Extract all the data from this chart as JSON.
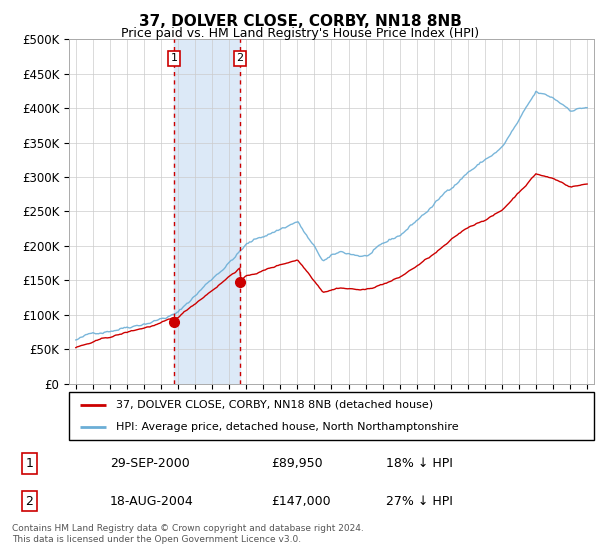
{
  "title": "37, DOLVER CLOSE, CORBY, NN18 8NB",
  "subtitle": "Price paid vs. HM Land Registry's House Price Index (HPI)",
  "legend_line1": "37, DOLVER CLOSE, CORBY, NN18 8NB (detached house)",
  "legend_line2": "HPI: Average price, detached house, North Northamptonshire",
  "table_row1_num": "1",
  "table_row1_date": "29-SEP-2000",
  "table_row1_price": "£89,950",
  "table_row1_hpi": "18% ↓ HPI",
  "table_row2_num": "2",
  "table_row2_date": "18-AUG-2004",
  "table_row2_price": "£147,000",
  "table_row2_hpi": "27% ↓ HPI",
  "footnote": "Contains HM Land Registry data © Crown copyright and database right 2024.\nThis data is licensed under the Open Government Licence v3.0.",
  "hpi_color": "#6baed6",
  "price_color": "#cc0000",
  "highlight_color": "#dce9f7",
  "vline_color": "#cc0000",
  "box_color": "#cc0000",
  "ylim": [
    0,
    500000
  ],
  "yticks": [
    0,
    50000,
    100000,
    150000,
    200000,
    250000,
    300000,
    350000,
    400000,
    450000,
    500000
  ],
  "sale1_year": 2000.75,
  "sale1_price": 89950,
  "sale2_year": 2004.63,
  "sale2_price": 147000,
  "figsize": [
    6.0,
    5.6
  ],
  "dpi": 100
}
